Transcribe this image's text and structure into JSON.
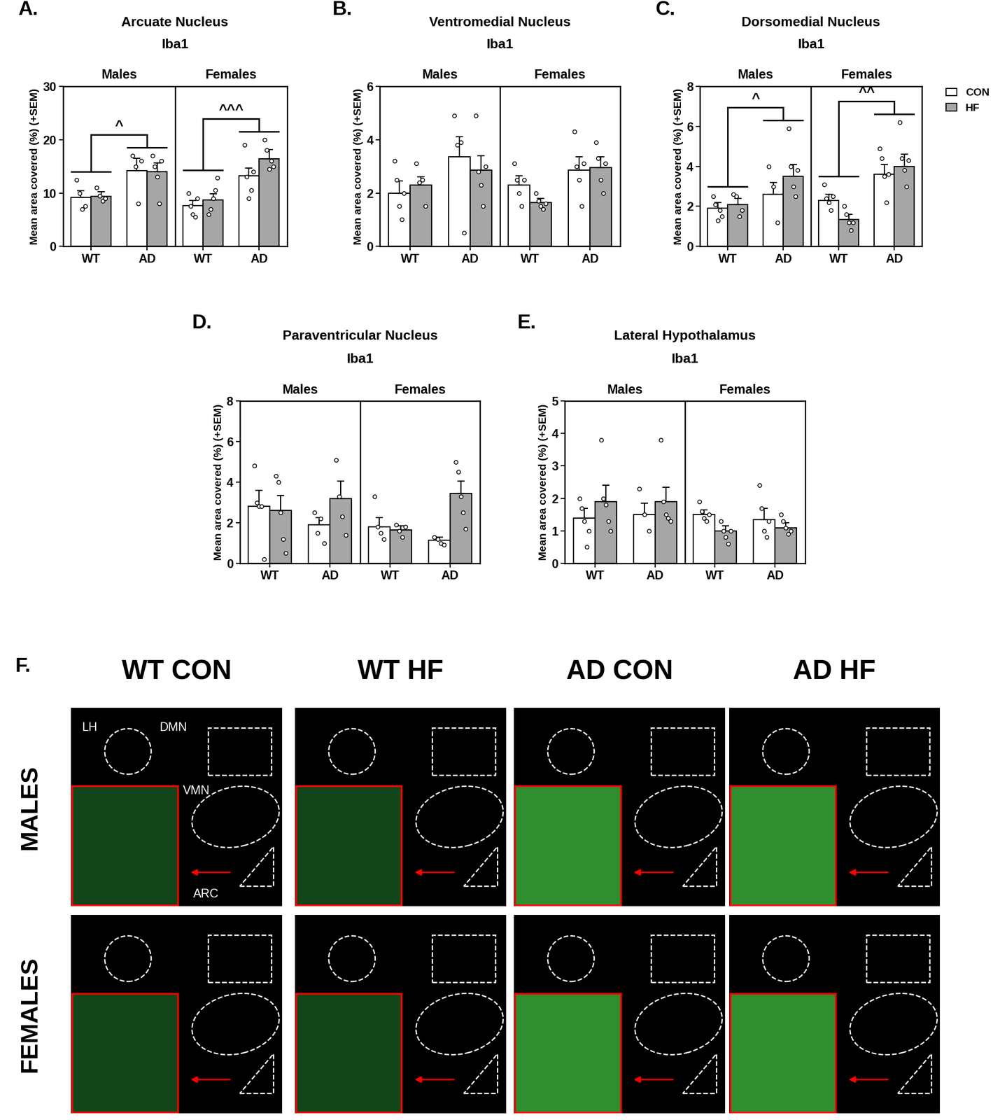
{
  "chart_data": [
    {
      "type": "bar",
      "panel": "A.",
      "title": "Arcuate Nucleus",
      "subtitle": "Iba1",
      "y_label": "Mean area covered (%) (+SEM)",
      "groups": [
        "Males",
        "Females"
      ],
      "categories": [
        "WT",
        "AD",
        "WT",
        "AD"
      ],
      "ylim": [
        0,
        30
      ],
      "yticks": [
        0,
        10,
        20,
        30
      ],
      "series": [
        {
          "name": "CON",
          "color": "#ffffff",
          "values": [
            9.2,
            14.2,
            7.6,
            13.2
          ],
          "errors": [
            1.2,
            2.3,
            1.0,
            1.5
          ],
          "points": [
            [
              12.5,
              10,
              7,
              7.5
            ],
            [
              17,
              15,
              8,
              16
            ],
            [
              10,
              7.5,
              6,
              5.5,
              9
            ],
            [
              19,
              13,
              9,
              10.5,
              14
            ]
          ]
        },
        {
          "name": "HF",
          "color": "#a6a6a6",
          "values": [
            9.4,
            14.0,
            8.7,
            16.4
          ],
          "errors": [
            0.8,
            1.6,
            1.2,
            1.7
          ],
          "points": [
            [
              11,
              9.5,
              8.5,
              9
            ],
            [
              17,
              15,
              13,
              8,
              16
            ],
            [
              6,
              7,
              9,
              10.5,
              12.8
            ],
            [
              20,
              18,
              14.5,
              16,
              15
            ]
          ]
        }
      ],
      "annotations": [
        {
          "group": "Males",
          "text": "^"
        },
        {
          "group": "Females",
          "text": "^^^"
        }
      ]
    },
    {
      "type": "bar",
      "panel": "B.",
      "title": "Ventromedial Nucleus",
      "subtitle": "Iba1",
      "y_label": "Mean area covered (%) (+SEM)",
      "groups": [
        "Males",
        "Females"
      ],
      "categories": [
        "WT",
        "AD",
        "WT",
        "AD"
      ],
      "ylim": [
        0,
        6
      ],
      "yticks": [
        0,
        2,
        4,
        6
      ],
      "series": [
        {
          "name": "CON",
          "color": "#ffffff",
          "values": [
            2.0,
            3.35,
            2.3,
            2.85
          ],
          "errors": [
            0.45,
            0.75,
            0.35,
            0.5
          ],
          "points": [
            [
              3.2,
              2.5,
              1.5,
              1.0,
              2.0
            ],
            [
              4.9,
              3.8,
              3.9,
              0.5
            ],
            [
              3.1,
              2.5,
              2.0,
              1.5,
              2.5
            ],
            [
              4.3,
              3.0,
              2.5,
              1.5,
              3.1
            ]
          ]
        },
        {
          "name": "HF",
          "color": "#a6a6a6",
          "values": [
            2.3,
            2.85,
            1.65,
            2.95
          ],
          "errors": [
            0.3,
            0.55,
            0.15,
            0.4
          ],
          "points": [
            [
              3.1,
              2.4,
              2.5,
              1.5
            ],
            [
              4.9,
              2.8,
              2.3,
              1.5,
              3.0
            ],
            [
              2.0,
              1.7,
              1.5,
              1.4,
              1.6
            ],
            [
              3.9,
              3.3,
              2.5,
              2.0,
              3.1
            ]
          ]
        }
      ]
    },
    {
      "type": "bar",
      "panel": "C.",
      "title": "Dorsomedial Nucleus",
      "subtitle": "Iba1",
      "y_label": "Mean area covered (%) (+SEM)",
      "groups": [
        "Males",
        "Females"
      ],
      "categories": [
        "WT",
        "AD",
        "WT",
        "AD"
      ],
      "ylim": [
        0,
        8
      ],
      "yticks": [
        0,
        2,
        4,
        6,
        8
      ],
      "legend": "upper right",
      "series": [
        {
          "name": "CON",
          "color": "#ffffff",
          "values": [
            1.9,
            2.6,
            2.3,
            3.6
          ],
          "errors": [
            0.3,
            0.6,
            0.3,
            0.5
          ],
          "points": [
            [
              2.5,
              2.1,
              1.3,
              1.8,
              1.5
            ],
            [
              4.0,
              3.0,
              1.2
            ],
            [
              3.1,
              2.4,
              2.2,
              1.8,
              2.5
            ],
            [
              4.9,
              4.4,
              3.5,
              2.2,
              3.6
            ]
          ]
        },
        {
          "name": "HF",
          "color": "#a6a6a6",
          "values": [
            2.1,
            3.5,
            1.35,
            4.0
          ],
          "errors": [
            0.3,
            0.6,
            0.25,
            0.6
          ],
          "points": [
            [
              2.6,
              2.5,
              1.5,
              1.8
            ],
            [
              5.9,
              4.0,
              3.0,
              2.5,
              3.8
            ],
            [
              2.0,
              1.6,
              1.2,
              0.8,
              1.2
            ],
            [
              6.2,
              4.4,
              3.8,
              3.0,
              4.3
            ]
          ]
        }
      ],
      "annotations": [
        {
          "group": "Males",
          "text": "^"
        },
        {
          "group": "Females",
          "text": "^^"
        }
      ]
    },
    {
      "type": "bar",
      "panel": "D.",
      "title": "Paraventricular Nucleus",
      "subtitle": "Iba1",
      "y_label": "Mean area covered (%) (+SEM)",
      "groups": [
        "Males",
        "Females"
      ],
      "categories": [
        "WT",
        "AD",
        "WT",
        "AD"
      ],
      "ylim": [
        0,
        8
      ],
      "yticks": [
        0,
        2,
        4,
        6,
        8
      ],
      "series": [
        {
          "name": "CON",
          "color": "#ffffff",
          "values": [
            2.8,
            1.9,
            1.8,
            1.15
          ],
          "errors": [
            0.8,
            0.35,
            0.45,
            0.15
          ],
          "points": [
            [
              4.8,
              3.0,
              2.8,
              2.8,
              0.2
            ],
            [
              2.5,
              1.5,
              2.2,
              1.0
            ],
            [
              3.3,
              1.8,
              1.5,
              1.2
            ],
            [
              1.3,
              1.2,
              1.0,
              0.9
            ]
          ]
        },
        {
          "name": "HF",
          "color": "#a6a6a6",
          "values": [
            2.6,
            3.2,
            1.65,
            3.45
          ],
          "errors": [
            0.75,
            0.85,
            0.2,
            0.6
          ],
          "points": [
            [
              4.3,
              4.0,
              2.5,
              1.2,
              0.5
            ],
            [
              5.1,
              3.3,
              2.3,
              1.4
            ],
            [
              1.9,
              1.6,
              1.3,
              1.8
            ],
            [
              5.0,
              4.5,
              3.3,
              2.5,
              1.7
            ]
          ]
        }
      ]
    },
    {
      "type": "bar",
      "panel": "E.",
      "title": "Lateral Hypothalamus",
      "subtitle": "Iba1",
      "y_label": "Mean area covered (%) (+SEM)",
      "groups": [
        "Males",
        "Females"
      ],
      "categories": [
        "WT",
        "AD",
        "WT",
        "AD"
      ],
      "ylim": [
        0,
        5
      ],
      "yticks": [
        0,
        1,
        2,
        3,
        4,
        5
      ],
      "series": [
        {
          "name": "CON",
          "color": "#ffffff",
          "values": [
            1.4,
            1.5,
            1.5,
            1.35
          ],
          "errors": [
            0.3,
            0.35,
            0.15,
            0.35
          ],
          "points": [
            [
              2.0,
              1.7,
              1.3,
              0.5,
              1.0
            ],
            [
              2.3,
              1.5,
              1.0
            ],
            [
              1.9,
              1.6,
              1.4,
              1.3,
              1.5
            ],
            [
              2.4,
              1.7,
              1.0,
              0.8,
              1.3
            ]
          ]
        },
        {
          "name": "HF",
          "color": "#a6a6a6",
          "values": [
            1.9,
            1.9,
            1.0,
            1.1
          ],
          "errors": [
            0.5,
            0.45,
            0.15,
            0.15
          ],
          "points": [
            [
              3.8,
              2.0,
              1.8,
              1.3,
              1.0
            ],
            [
              3.8,
              1.9,
              1.5,
              1.4,
              1.3
            ],
            [
              1.3,
              1.0,
              0.8,
              0.6,
              1.0
            ],
            [
              1.5,
              1.3,
              1.1,
              0.9,
              1.0
            ]
          ]
        }
      ]
    }
  ],
  "image_panel": {
    "panel": "F.",
    "columns": [
      "WT CON",
      "WT HF",
      "AD CON",
      "AD HF"
    ],
    "rows": [
      "MALES",
      "FEMALES"
    ],
    "region_labels": [
      "LH",
      "DMN",
      "VMN",
      "ARC"
    ]
  }
}
